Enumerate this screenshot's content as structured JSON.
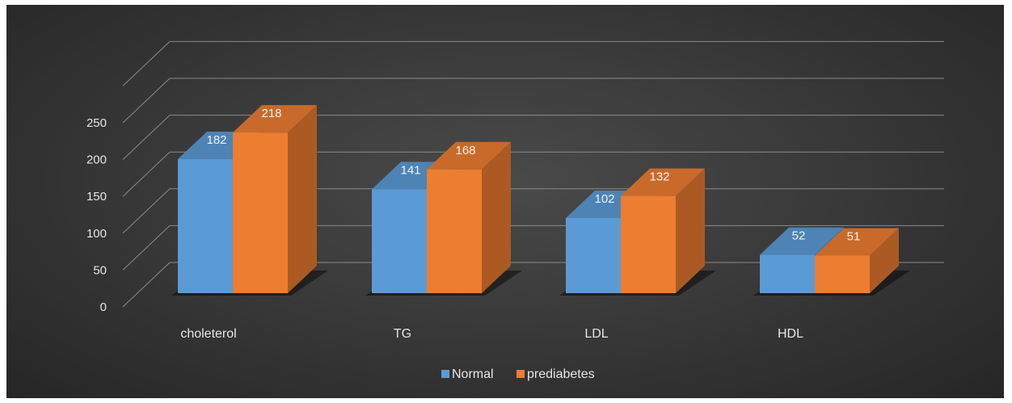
{
  "chart_data": {
    "type": "bar",
    "style": "3d-clustered-column",
    "categories": [
      "choleterol",
      "TG",
      "LDL",
      "HDL"
    ],
    "series": [
      {
        "name": "Normal",
        "values": [
          182,
          141,
          102,
          52
        ],
        "color": "#5b9bd5"
      },
      {
        "name": "prediabetes",
        "values": [
          218,
          168,
          132,
          51
        ],
        "color": "#ed7d31"
      }
    ],
    "y_ticks": [
      "0",
      "50",
      "100",
      "150",
      "200",
      "250"
    ],
    "ylim": [
      0,
      300
    ],
    "grid": true,
    "legend_position": "bottom",
    "title": "",
    "xlabel": "",
    "ylabel": "",
    "background": "#3a3a3a"
  }
}
